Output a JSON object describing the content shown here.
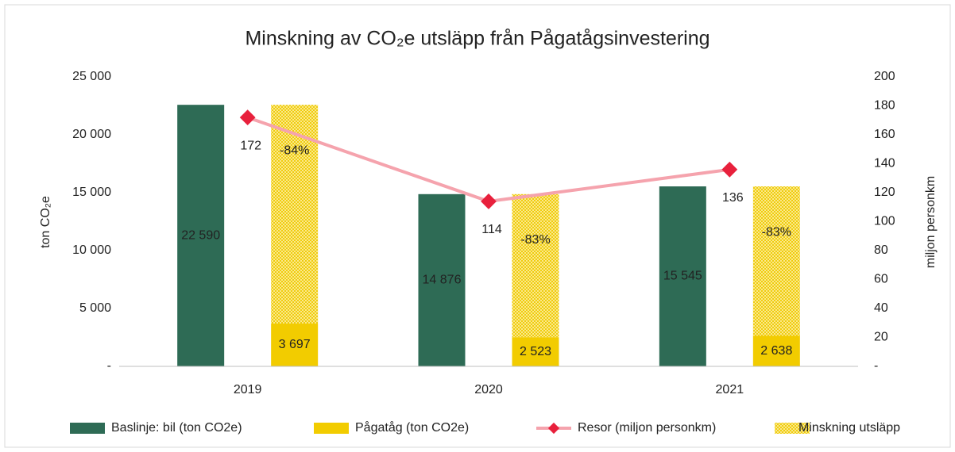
{
  "chart_data": {
    "type": "bar",
    "title": "Minskning av CO₂e utsläpp från Pågatågsinvestering",
    "ylabel": "ton CO₂e",
    "y2label": "miljon personkm",
    "categories": [
      "2019",
      "2020",
      "2021"
    ],
    "series": [
      {
        "name": "Baslinje: bil (ton CO2e)",
        "color": "#2e6b55",
        "type": "bar",
        "values": [
          22590,
          14876,
          15545
        ],
        "value_labels": [
          "22 590",
          "14 876",
          "15 545"
        ]
      },
      {
        "name": "Pågatåg (ton CO2e)",
        "color": "#f2cc00",
        "type": "stack-base",
        "values": [
          3697,
          2523,
          2638
        ],
        "value_labels": [
          "3 697",
          "2 523",
          "2 638"
        ]
      },
      {
        "name": "Resor (miljon personkm)",
        "color": "#e8203c",
        "line_color": "#f5a3ad",
        "type": "line",
        "axis": "y2",
        "values": [
          172,
          114,
          136
        ]
      },
      {
        "name": "Minskning utsläpp",
        "color": "#f7dc4a",
        "type": "stack-hatch",
        "values": [
          18893,
          12353,
          12907
        ]
      }
    ],
    "percent_labels": {
      "values": [
        -84,
        -83,
        -83
      ],
      "value_labels": [
        "-84%",
        "-83%",
        "-83%"
      ]
    },
    "ylim": [
      0,
      25000
    ],
    "yticks": [
      {
        "value": 0,
        "label": "-"
      },
      {
        "value": 5000,
        "label": "5 000"
      },
      {
        "value": 10000,
        "label": "10 000"
      },
      {
        "value": 15000,
        "label": "15 000"
      },
      {
        "value": 20000,
        "label": "20 000"
      },
      {
        "value": 25000,
        "label": "25 000"
      }
    ],
    "y2lim": [
      0,
      200
    ],
    "y2ticks": [
      {
        "value": 0,
        "label": "-"
      },
      20,
      40,
      60,
      80,
      100,
      120,
      140,
      160,
      180,
      200
    ],
    "grid": false,
    "legend": "bottom"
  }
}
